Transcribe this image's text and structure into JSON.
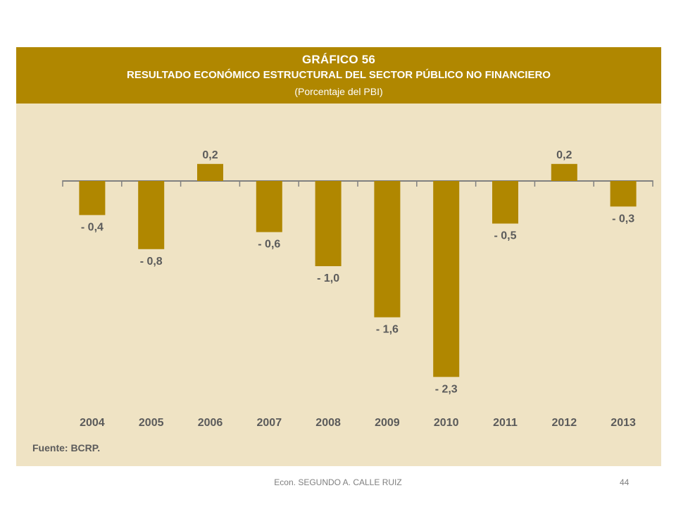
{
  "slide": {
    "footer_author": "Econ. SEGUNDO A. CALLE RUIZ",
    "page_number": "44"
  },
  "colors": {
    "header_bg": "#b08700",
    "panel_bg": "#efe3c4",
    "bar": "#b08700",
    "axis": "#808080",
    "label": "#5b5b5b"
  },
  "chart_data": {
    "type": "bar",
    "number": "GRÁFICO 56",
    "title": "RESULTADO ECONÓMICO ESTRUCTURAL DEL SECTOR PÚBLICO NO FINANCIERO",
    "subtitle": "(Porcentaje del PBI)",
    "categories": [
      "2004",
      "2005",
      "2006",
      "2007",
      "2008",
      "2009",
      "2010",
      "2011",
      "2012",
      "2013"
    ],
    "values": [
      -0.4,
      -0.8,
      0.2,
      -0.6,
      -1.0,
      -1.6,
      -2.3,
      -0.5,
      0.2,
      -0.3
    ],
    "value_labels": [
      "- 0,4",
      "- 0,8",
      "0,2",
      "- 0,6",
      "- 1,0",
      "- 1,6",
      "- 2,3",
      "- 0,5",
      "0,2",
      "- 0,3"
    ],
    "source": "Fuente: BCRP.",
    "xlabel": "",
    "ylabel": "",
    "ylim": [
      -2.3,
      0.2
    ],
    "grid": false,
    "legend": "none"
  }
}
